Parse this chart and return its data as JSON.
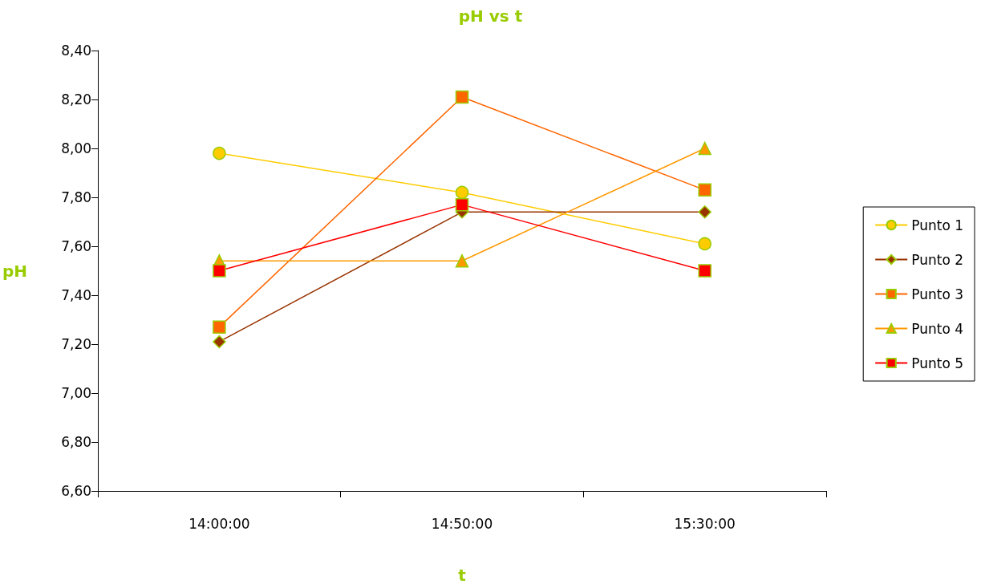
{
  "chart_data": {
    "type": "line",
    "title": "pH vs t",
    "xlabel": "t",
    "ylabel": "pH",
    "categories": [
      "14:00:00",
      "14:50:00",
      "15:30:00"
    ],
    "series": [
      {
        "name": "Punto 1",
        "color": "#ffcc00",
        "marker": "circle",
        "values": [
          7.98,
          7.82,
          7.61
        ]
      },
      {
        "name": "Punto 2",
        "color": "#993300",
        "marker": "diamond",
        "values": [
          7.21,
          7.74,
          7.74
        ]
      },
      {
        "name": "Punto 3",
        "color": "#ff6600",
        "marker": "square",
        "values": [
          7.27,
          8.21,
          7.83
        ]
      },
      {
        "name": "Punto 4",
        "color": "#ff9900",
        "marker": "triangle",
        "values": [
          7.54,
          7.54,
          8.0
        ]
      },
      {
        "name": "Punto 5",
        "color": "#ff0000",
        "marker": "square",
        "values": [
          7.5,
          7.77,
          7.5
        ]
      }
    ],
    "ylim": [
      6.6,
      8.4
    ],
    "yticks": [
      {
        "value": 6.6,
        "label": "6,60"
      },
      {
        "value": 6.8,
        "label": "6,80"
      },
      {
        "value": 7.0,
        "label": "7,00"
      },
      {
        "value": 7.2,
        "label": "7,20"
      },
      {
        "value": 7.4,
        "label": "7,40"
      },
      {
        "value": 7.6,
        "label": "7,60"
      },
      {
        "value": 7.8,
        "label": "7,80"
      },
      {
        "value": 8.0,
        "label": "8,00"
      },
      {
        "value": 8.2,
        "label": "8,20"
      },
      {
        "value": 8.4,
        "label": "8,40"
      }
    ],
    "grid": false,
    "legend": "right",
    "line_style": "solid"
  }
}
